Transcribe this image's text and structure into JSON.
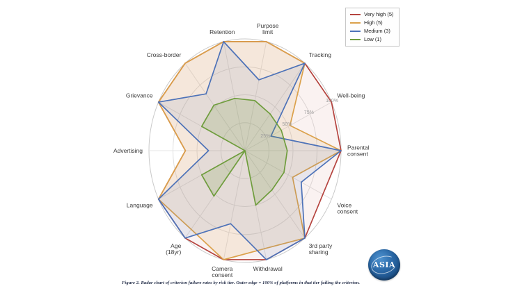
{
  "figure": {
    "caption": "Figure 2. Radar chart of criterion failure rates by risk tier. Outer edge = 100% of platforms in that tier failing the criterion."
  },
  "logo": {
    "text": "ASIA"
  },
  "colors": {
    "grid_ring": "#e0e0e0",
    "outer_ring": "#c9c9c9",
    "spoke": "#e4e4e4",
    "axis_label": "#3a3a3a",
    "tick_label": "#9a9a9a",
    "legend_border": "#c8c8c8",
    "logo_blue_dark": "#1a4c82",
    "logo_blue_light": "#4f93d0"
  },
  "chart_data": {
    "type": "radar",
    "title": "",
    "categories": [
      "Parental\nconsent",
      "Well-being",
      "Tracking",
      "Purpose\nlimit",
      "Retention",
      "Cross-border",
      "Grievance",
      "Advertising",
      "Language",
      "Age\n(18yr)",
      "Camera\nconsent",
      "Withdrawal",
      "3rd party\nsharing",
      "Voice\nconsent"
    ],
    "angle_start_deg": 0,
    "direction": "counterclockwise",
    "rings_pct": [
      25,
      50,
      75,
      100
    ],
    "tick_labels": [
      "25%",
      "50%",
      "75%",
      "100%"
    ],
    "ylim": [
      0,
      100
    ],
    "grid": true,
    "legend_position": "top-right",
    "series": [
      {
        "name": "Very high (5)",
        "color": "#b5443f",
        "fill_alpha": 0.07,
        "values": [
          100,
          100,
          100,
          100,
          100,
          100,
          100,
          62,
          100,
          100,
          100,
          100,
          100,
          90
        ]
      },
      {
        "name": "High (5)",
        "color": "#dba14b",
        "fill_alpha": 0.13,
        "values": [
          100,
          52,
          100,
          100,
          100,
          100,
          100,
          62,
          100,
          90,
          100,
          90,
          100,
          55
        ]
      },
      {
        "name": "Medium (3)",
        "color": "#4d72b8",
        "fill_alpha": 0.1,
        "values": [
          100,
          30,
          100,
          65,
          100,
          65,
          100,
          38,
          100,
          100,
          67,
          100,
          100,
          65
        ]
      },
      {
        "name": "Low (1)",
        "color": "#6f9d3d",
        "fill_alpha": 0.18,
        "values": [
          44,
          42,
          42,
          46,
          48,
          52,
          50,
          0,
          50,
          52,
          0,
          50,
          45,
          45
        ]
      }
    ]
  }
}
